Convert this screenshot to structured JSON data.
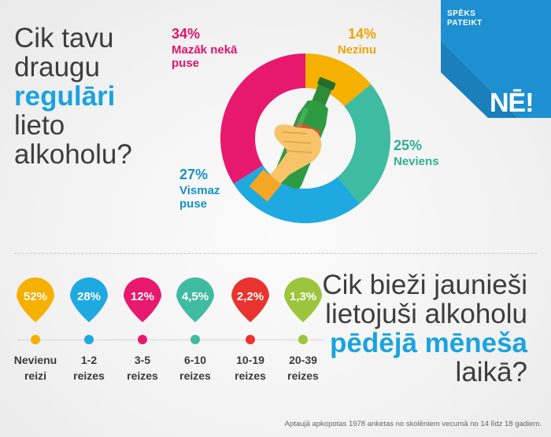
{
  "question1": {
    "line1": "Cik tavu",
    "line2": "draugu",
    "line3": "regulāri",
    "line4": "lieto",
    "line5": "alkoholu?"
  },
  "question2": {
    "line1": "Cik bieži jaunieši",
    "line2": "lietojuši alkoholu",
    "line3": "pēdējā mēneša",
    "line4": "laikā?"
  },
  "brand": {
    "line1": "SPĒKS",
    "line2": "PATEIKT",
    "logo": "NĒ!",
    "color": "#1e8fd0"
  },
  "pie_labels": {
    "pink": {
      "pct": "34%",
      "l1": "Mazāk nekā",
      "l2": "puse"
    },
    "orange": {
      "pct": "14%",
      "l1": "Nezinu"
    },
    "teal": {
      "pct": "25%",
      "l1": "Neviens"
    },
    "blue": {
      "pct": "27%",
      "l1": "Vismaz",
      "l2": "puse"
    }
  },
  "footnote": "Aptaujā apkopotas 1978 anketas no skolēniem vecumā no 14 līdz 18 gadiem.",
  "chart_data": [
    {
      "type": "pie",
      "title": "Cik tavu draugu regulāri lieto alkoholu?",
      "donut": true,
      "slices": [
        {
          "label": "Nezinu",
          "value": 14,
          "color": "#f5b000"
        },
        {
          "label": "Neviens",
          "value": 25,
          "color": "#3fbba1"
        },
        {
          "label": "Vismaz puse",
          "value": 27,
          "color": "#1ea9e1"
        },
        {
          "label": "Mazāk nekā puse",
          "value": 34,
          "color": "#e6196f"
        }
      ]
    },
    {
      "type": "bar",
      "title": "Cik bieži jaunieši lietojuši alkoholu pēdējā mēneša laikā?",
      "categories": [
        "Nevienu reizi",
        "1-2 reizes",
        "3-5 reizes",
        "6-10 reizes",
        "10-19 reizes",
        "20-39 reizes"
      ],
      "cat_lines": [
        [
          "Nevienu",
          "reizi"
        ],
        [
          "1-2",
          "reizes"
        ],
        [
          "3-5",
          "reizes"
        ],
        [
          "6-10",
          "reizes"
        ],
        [
          "10-19",
          "reizes"
        ],
        [
          "20-39",
          "reizes"
        ]
      ],
      "labels": [
        "52%",
        "28%",
        "12%",
        "4,5%",
        "2,2%",
        "1,3%"
      ],
      "values": [
        52,
        28,
        12,
        4.5,
        2.2,
        1.3
      ],
      "colors": [
        "#f5b000",
        "#1ea9e1",
        "#e6196f",
        "#3fbba1",
        "#e8332f",
        "#9bc53d"
      ]
    }
  ]
}
